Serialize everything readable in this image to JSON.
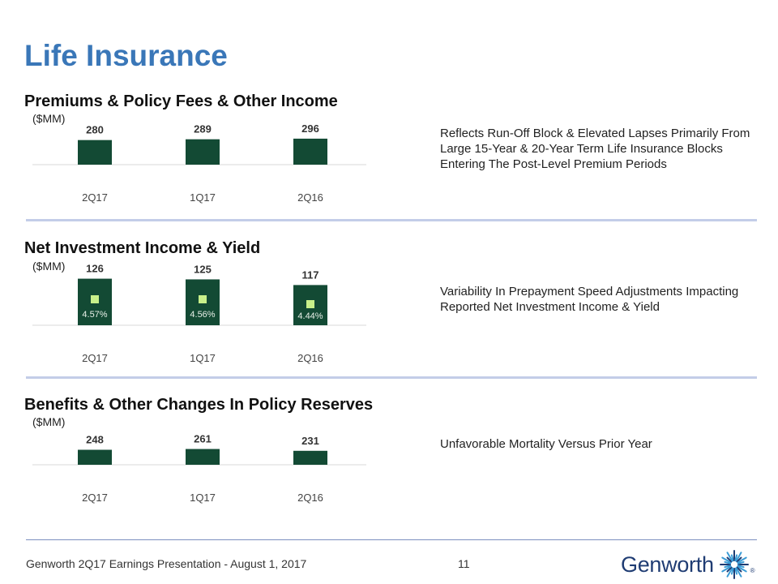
{
  "page": {
    "title": "Life Insurance",
    "footer": "Genworth 2Q17 Earnings Presentation - August 1, 2017",
    "page_number": "11",
    "logo_text": "Genworth",
    "logo_mark": "®"
  },
  "colors": {
    "title": "#3a77b8",
    "bar": "#134a34",
    "yield_marker": "#c8f08a",
    "divider": "#c3cde8",
    "axis": "#d9d9d9",
    "logo": "#1f3c73"
  },
  "sections": [
    {
      "title": "Premiums & Policy Fees & Other Income",
      "unit": "($MM)",
      "note": "Reflects Run-Off Block & Elevated Lapses Primarily From Large 15-Year & 20-Year Term Life Insurance Blocks Entering The Post-Level Premium Periods"
    },
    {
      "title": "Net Investment Income & Yield",
      "unit": "($MM)",
      "note": "Variability In Prepayment Speed Adjustments Impacting Reported Net Investment Income & Yield"
    },
    {
      "title": "Benefits & Other Changes In Policy Reserves",
      "unit": "($MM)",
      "note": "Unfavorable Mortality Versus Prior Year"
    }
  ],
  "chart_data": [
    {
      "type": "bar",
      "title": "Premiums & Policy Fees & Other Income",
      "ylabel": "($MM)",
      "categories": [
        "2Q17",
        "1Q17",
        "2Q16"
      ],
      "values": [
        280,
        289,
        296
      ],
      "data_labels": [
        "280",
        "289",
        "296"
      ]
    },
    {
      "type": "bar",
      "title": "Net Investment Income & Yield",
      "ylabel": "($MM)",
      "categories": [
        "2Q17",
        "1Q17",
        "2Q16"
      ],
      "values": [
        126,
        125,
        117
      ],
      "data_labels": [
        "126",
        "125",
        "117"
      ],
      "yield_series": {
        "name": "Yield",
        "values": [
          4.57,
          4.56,
          4.44
        ],
        "labels": [
          "4.57%",
          "4.56%",
          "4.44%"
        ]
      }
    },
    {
      "type": "bar",
      "title": "Benefits & Other Changes In Policy Reserves",
      "ylabel": "($MM)",
      "categories": [
        "2Q17",
        "1Q17",
        "2Q16"
      ],
      "values": [
        248,
        261,
        231
      ],
      "data_labels": [
        "248",
        "261",
        "231"
      ]
    }
  ]
}
